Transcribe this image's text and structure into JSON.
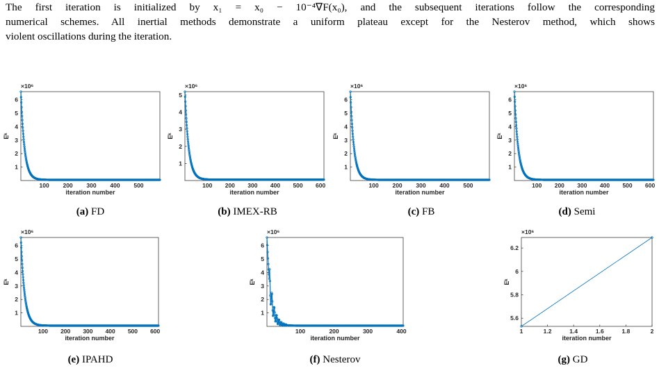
{
  "paragraph": {
    "line1": "The first iteration is initialized by x₁ = x₀ − 10⁻⁴∇F(x₀), and the subsequent iterations follow the corresponding",
    "line2": "numerical schemes. All inertial methods demonstrate a uniform plateau except for the Nesterov method, which shows",
    "line3": "violent oscillations during the iteration."
  },
  "colors": {
    "series": "#0072BD",
    "axis": "#262626"
  },
  "chart_data": [
    {
      "id": "fd",
      "type": "line",
      "caption_tag": "(a)",
      "caption_name": "FD",
      "ylabel": "Eᵏ",
      "xlabel": "iteration number",
      "exponent": "×10⁶",
      "xlim": [
        1,
        590
      ],
      "ylim": [
        0,
        6.6
      ],
      "xticks": [
        100,
        200,
        300,
        400,
        500
      ],
      "yticks": [
        1,
        2,
        3,
        4,
        5,
        6
      ],
      "series": [
        {
          "start": 6.6,
          "tail": 0.05,
          "decay": 0.065,
          "n": 590
        }
      ]
    },
    {
      "id": "imex",
      "type": "line",
      "caption_tag": "(b)",
      "caption_name": "IMEX-RB",
      "ylabel": "Eᵏ",
      "xlabel": "iteration number",
      "exponent": "×10⁶",
      "xlim": [
        1,
        615
      ],
      "ylim": [
        0,
        5.2
      ],
      "xticks": [
        100,
        200,
        300,
        400,
        500,
        600
      ],
      "yticks": [
        1,
        2,
        3,
        4,
        5
      ],
      "series": [
        {
          "start": 5.2,
          "tail": 0.05,
          "decay": 0.06,
          "n": 615
        }
      ]
    },
    {
      "id": "fb",
      "type": "line",
      "caption_tag": "(c)",
      "caption_name": "FB",
      "ylabel": "Eᵏ",
      "xlabel": "iteration number",
      "exponent": "×10⁶",
      "xlim": [
        1,
        590
      ],
      "ylim": [
        0,
        6.6
      ],
      "xticks": [
        100,
        200,
        300,
        400,
        500
      ],
      "yticks": [
        1,
        2,
        3,
        4,
        5,
        6
      ],
      "series": [
        {
          "start": 6.6,
          "tail": 0.05,
          "decay": 0.065,
          "n": 590
        }
      ]
    },
    {
      "id": "semi",
      "type": "line",
      "caption_tag": "(d)",
      "caption_name": "Semi",
      "ylabel": "Eᵏ",
      "xlabel": "iteration number",
      "exponent": "×10⁶",
      "xlim": [
        1,
        615
      ],
      "ylim": [
        0,
        6.6
      ],
      "xticks": [
        100,
        200,
        300,
        400,
        500,
        600
      ],
      "yticks": [
        1,
        2,
        3,
        4,
        5,
        6
      ],
      "series": [
        {
          "start": 6.6,
          "tail": 0.05,
          "decay": 0.06,
          "n": 615
        }
      ]
    },
    {
      "id": "ipahd",
      "type": "line",
      "caption_tag": "(e)",
      "caption_name": "IPAHD",
      "ylabel": "Eᵏ",
      "xlabel": "iteration number",
      "exponent": "×10⁶",
      "xlim": [
        1,
        615
      ],
      "ylim": [
        0,
        6.6
      ],
      "xticks": [
        100,
        200,
        300,
        400,
        500,
        600
      ],
      "yticks": [
        1,
        2,
        3,
        4,
        5,
        6
      ],
      "series": [
        {
          "start": 6.6,
          "tail": 0.05,
          "decay": 0.06,
          "n": 615
        }
      ]
    },
    {
      "id": "nesterov",
      "type": "line",
      "caption_tag": "(f)",
      "caption_name": "Nesterov",
      "ylabel": "Eᵏ",
      "xlabel": "iteration number",
      "exponent": "×10⁶",
      "xlim": [
        1,
        405
      ],
      "ylim": [
        0,
        6.6
      ],
      "xticks": [
        100,
        200,
        300,
        400
      ],
      "yticks": [
        1,
        2,
        3,
        4,
        5,
        6
      ],
      "series": [
        {
          "start": 6.6,
          "tail": 0.05,
          "decay": 0.09,
          "n": 405,
          "oscillate": true
        }
      ]
    },
    {
      "id": "gd",
      "type": "line",
      "caption_tag": "(g)",
      "caption_name": "GD",
      "ylabel": "Eᵏ",
      "xlabel": "iteration number",
      "exponent": "×10⁶",
      "xlim": [
        1,
        2
      ],
      "ylim": [
        5.53,
        6.29
      ],
      "xticks": [
        1,
        1.2,
        1.4,
        1.6,
        1.8,
        2
      ],
      "yticks": [
        5.6,
        5.8,
        6,
        6.2
      ],
      "series": [
        {
          "points": [
            [
              1,
              5.53
            ],
            [
              2,
              6.29
            ]
          ]
        }
      ]
    }
  ]
}
